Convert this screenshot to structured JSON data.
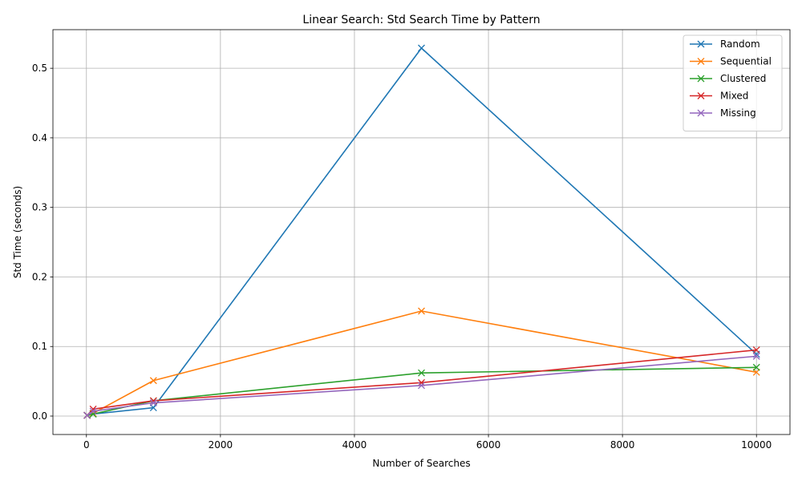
{
  "chart_data": {
    "type": "line",
    "title": "Linear Search: Std Search Time by Pattern",
    "xlabel": "Number of Searches",
    "ylabel": "Std Time (seconds)",
    "xlim": [
      -500,
      10500
    ],
    "ylim": [
      -0.0265,
      0.5555
    ],
    "xticks": [
      0,
      2000,
      4000,
      6000,
      8000,
      10000
    ],
    "yticks": [
      0.0,
      0.1,
      0.2,
      0.3,
      0.4,
      0.5
    ],
    "xtick_labels": [
      "0",
      "2000",
      "4000",
      "6000",
      "8000",
      "10000"
    ],
    "ytick_labels": [
      "0.0",
      "0.1",
      "0.2",
      "0.3",
      "0.4",
      "0.5"
    ],
    "grid": true,
    "legend_position": "top-right",
    "marker": "x",
    "x": [
      10,
      100,
      1000,
      5000,
      10000
    ],
    "series": [
      {
        "name": "Random",
        "color": "#1f77b4",
        "values": [
          0.001,
          0.003,
          0.012,
          0.529,
          0.089
        ]
      },
      {
        "name": "Sequential",
        "color": "#ff7f0e",
        "values": [
          0.001,
          0.004,
          0.051,
          0.151,
          0.063
        ]
      },
      {
        "name": "Clustered",
        "color": "#2ca02c",
        "values": [
          0.001,
          0.003,
          0.022,
          0.062,
          0.07
        ]
      },
      {
        "name": "Mixed",
        "color": "#d62728",
        "values": [
          0.001,
          0.01,
          0.022,
          0.048,
          0.095
        ]
      },
      {
        "name": "Missing",
        "color": "#9467bd",
        "values": [
          0.001,
          0.007,
          0.019,
          0.044,
          0.086
        ]
      }
    ]
  }
}
